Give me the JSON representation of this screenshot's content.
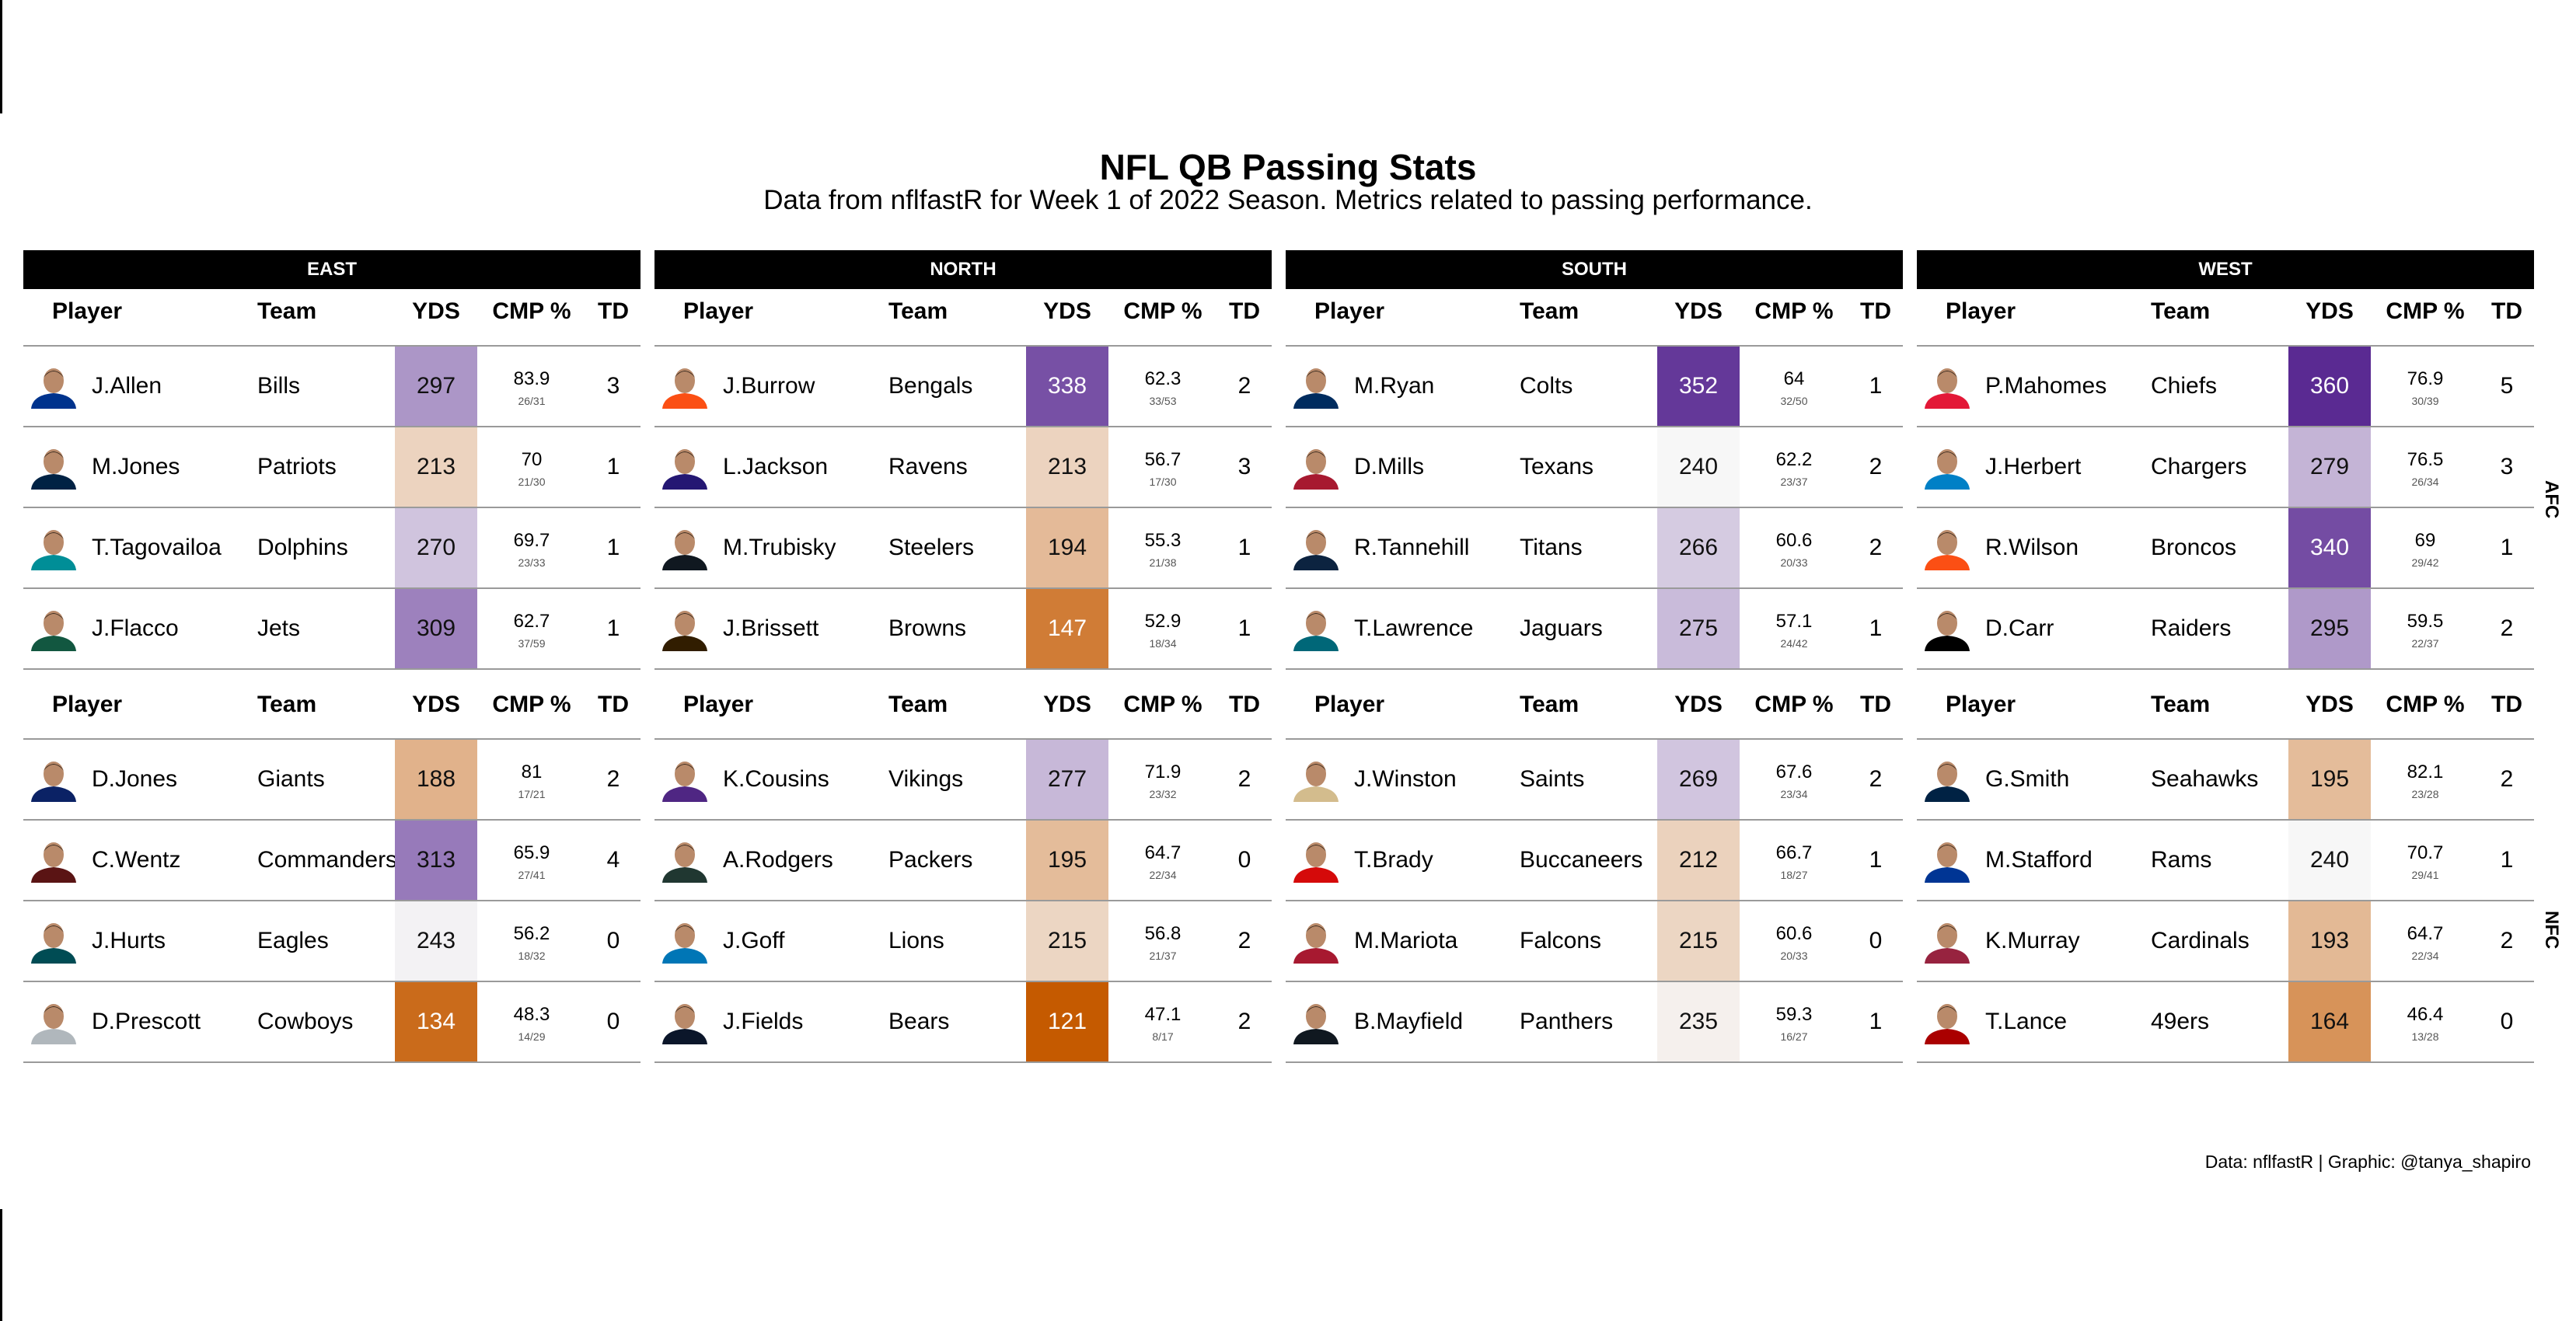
{
  "chart_data": {
    "type": "table",
    "title": "NFL QB Passing Stats",
    "subtitle": "Data from nflfastR for Week 1 of 2022 Season. Metrics related to passing performance.",
    "caption": "Data: nflfastR | Graphic: @tanya_shapiro",
    "columns": [
      "Player",
      "Team",
      "YDS",
      "CMP %",
      "TD"
    ],
    "color_scale": {
      "low": "#c55a00",
      "mid": "#f7f7f7",
      "high": "#5a2a92",
      "low_value": 121,
      "mid_value": 240,
      "high_value": 360
    },
    "conferences": [
      {
        "name": "AFC",
        "divisions": [
          {
            "name": "EAST",
            "rows": [
              {
                "player": "J.Allen",
                "team": "Bills",
                "yds": 297,
                "cmp": "83.9",
                "att": "26/31",
                "td": 3,
                "helmet": "#00338D"
              },
              {
                "player": "M.Jones",
                "team": "Patriots",
                "yds": 213,
                "cmp": "70",
                "att": "21/30",
                "td": 1,
                "helmet": "#002244"
              },
              {
                "player": "T.Tagovailoa",
                "team": "Dolphins",
                "yds": 270,
                "cmp": "69.7",
                "att": "23/33",
                "td": 1,
                "helmet": "#008E97"
              },
              {
                "player": "J.Flacco",
                "team": "Jets",
                "yds": 309,
                "cmp": "62.7",
                "att": "37/59",
                "td": 1,
                "helmet": "#125740"
              }
            ]
          },
          {
            "name": "NORTH",
            "rows": [
              {
                "player": "J.Burrow",
                "team": "Bengals",
                "yds": 338,
                "cmp": "62.3",
                "att": "33/53",
                "td": 2,
                "helmet": "#FB4F14"
              },
              {
                "player": "L.Jackson",
                "team": "Ravens",
                "yds": 213,
                "cmp": "56.7",
                "att": "17/30",
                "td": 3,
                "helmet": "#241773"
              },
              {
                "player": "M.Trubisky",
                "team": "Steelers",
                "yds": 194,
                "cmp": "55.3",
                "att": "21/38",
                "td": 1,
                "helmet": "#101820"
              },
              {
                "player": "J.Brissett",
                "team": "Browns",
                "yds": 147,
                "cmp": "52.9",
                "att": "18/34",
                "td": 1,
                "helmet": "#311D00"
              }
            ]
          },
          {
            "name": "SOUTH",
            "rows": [
              {
                "player": "M.Ryan",
                "team": "Colts",
                "yds": 352,
                "cmp": "64",
                "att": "32/50",
                "td": 1,
                "helmet": "#002C5F"
              },
              {
                "player": "D.Mills",
                "team": "Texans",
                "yds": 240,
                "cmp": "62.2",
                "att": "23/37",
                "td": 2,
                "helmet": "#A71930"
              },
              {
                "player": "R.Tannehill",
                "team": "Titans",
                "yds": 266,
                "cmp": "60.6",
                "att": "20/33",
                "td": 2,
                "helmet": "#0C2340"
              },
              {
                "player": "T.Lawrence",
                "team": "Jaguars",
                "yds": 275,
                "cmp": "57.1",
                "att": "24/42",
                "td": 1,
                "helmet": "#006778"
              }
            ]
          },
          {
            "name": "WEST",
            "rows": [
              {
                "player": "P.Mahomes",
                "team": "Chiefs",
                "yds": 360,
                "cmp": "76.9",
                "att": "30/39",
                "td": 5,
                "helmet": "#E31837"
              },
              {
                "player": "J.Herbert",
                "team": "Chargers",
                "yds": 279,
                "cmp": "76.5",
                "att": "26/34",
                "td": 3,
                "helmet": "#0080C6"
              },
              {
                "player": "R.Wilson",
                "team": "Broncos",
                "yds": 340,
                "cmp": "69",
                "att": "29/42",
                "td": 1,
                "helmet": "#FB4F14"
              },
              {
                "player": "D.Carr",
                "team": "Raiders",
                "yds": 295,
                "cmp": "59.5",
                "att": "22/37",
                "td": 2,
                "helmet": "#000000"
              }
            ]
          }
        ]
      },
      {
        "name": "NFC",
        "divisions": [
          {
            "name": "EAST",
            "rows": [
              {
                "player": "D.Jones",
                "team": "Giants",
                "yds": 188,
                "cmp": "81",
                "att": "17/21",
                "td": 2,
                "helmet": "#0B2265"
              },
              {
                "player": "C.Wentz",
                "team": "Commanders",
                "yds": 313,
                "cmp": "65.9",
                "att": "27/41",
                "td": 4,
                "helmet": "#5A1414"
              },
              {
                "player": "J.Hurts",
                "team": "Eagles",
                "yds": 243,
                "cmp": "56.2",
                "att": "18/32",
                "td": 0,
                "helmet": "#004C54"
              },
              {
                "player": "D.Prescott",
                "team": "Cowboys",
                "yds": 134,
                "cmp": "48.3",
                "att": "14/29",
                "td": 0,
                "helmet": "#B0B7BC"
              }
            ]
          },
          {
            "name": "NORTH",
            "rows": [
              {
                "player": "K.Cousins",
                "team": "Vikings",
                "yds": 277,
                "cmp": "71.9",
                "att": "23/32",
                "td": 2,
                "helmet": "#4F2683"
              },
              {
                "player": "A.Rodgers",
                "team": "Packers",
                "yds": 195,
                "cmp": "64.7",
                "att": "22/34",
                "td": 0,
                "helmet": "#203731"
              },
              {
                "player": "J.Goff",
                "team": "Lions",
                "yds": 215,
                "cmp": "56.8",
                "att": "21/37",
                "td": 2,
                "helmet": "#0076B6"
              },
              {
                "player": "J.Fields",
                "team": "Bears",
                "yds": 121,
                "cmp": "47.1",
                "att": "8/17",
                "td": 2,
                "helmet": "#0B162A"
              }
            ]
          },
          {
            "name": "SOUTH",
            "rows": [
              {
                "player": "J.Winston",
                "team": "Saints",
                "yds": 269,
                "cmp": "67.6",
                "att": "23/34",
                "td": 2,
                "helmet": "#D3BC8D"
              },
              {
                "player": "T.Brady",
                "team": "Buccaneers",
                "yds": 212,
                "cmp": "66.7",
                "att": "18/27",
                "td": 1,
                "helmet": "#D50A0A"
              },
              {
                "player": "M.Mariota",
                "team": "Falcons",
                "yds": 215,
                "cmp": "60.6",
                "att": "20/33",
                "td": 0,
                "helmet": "#A71930"
              },
              {
                "player": "B.Mayfield",
                "team": "Panthers",
                "yds": 235,
                "cmp": "59.3",
                "att": "16/27",
                "td": 1,
                "helmet": "#101820"
              }
            ]
          },
          {
            "name": "WEST",
            "rows": [
              {
                "player": "G.Smith",
                "team": "Seahawks",
                "yds": 195,
                "cmp": "82.1",
                "att": "23/28",
                "td": 2,
                "helmet": "#002244"
              },
              {
                "player": "M.Stafford",
                "team": "Rams",
                "yds": 240,
                "cmp": "70.7",
                "att": "29/41",
                "td": 1,
                "helmet": "#003594"
              },
              {
                "player": "K.Murray",
                "team": "Cardinals",
                "yds": 193,
                "cmp": "64.7",
                "att": "22/34",
                "td": 2,
                "helmet": "#97233F"
              },
              {
                "player": "T.Lance",
                "team": "49ers",
                "yds": 164,
                "cmp": "46.4",
                "att": "13/28",
                "td": 0,
                "helmet": "#AA0000"
              }
            ]
          }
        ]
      }
    ]
  }
}
